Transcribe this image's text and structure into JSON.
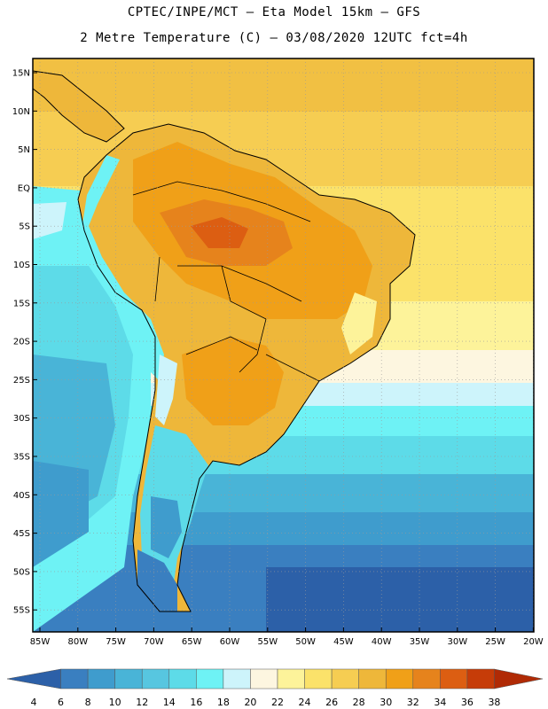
{
  "title_line1": "CPTEC/INPE/MCT –  Eta Model 15km – GFS",
  "title_line2": "2 Metre Temperature (C) – 03/08/2020 12UTC fct=4h",
  "chart_data": {
    "type": "heatmap",
    "variable": "2 Metre Temperature (C)",
    "lat_ticks": [
      "15N",
      "10N",
      "5N",
      "EQ",
      "5S",
      "10S",
      "15S",
      "20S",
      "25S",
      "30S",
      "35S",
      "40S",
      "45S",
      "50S",
      "55S"
    ],
    "lon_ticks": [
      "85W",
      "80W",
      "75W",
      "70W",
      "65W",
      "60W",
      "55W",
      "50W",
      "45W",
      "40W",
      "35W",
      "30W",
      "25W",
      "20W"
    ],
    "colorbar": {
      "levels": [
        4,
        6,
        8,
        10,
        12,
        14,
        16,
        18,
        20,
        22,
        24,
        26,
        28,
        30,
        32,
        34,
        36,
        38
      ],
      "colors": [
        "#2c60a8",
        "#3a7fc0",
        "#3f9ccd",
        "#49b4d7",
        "#57c6e0",
        "#5ddbe8",
        "#6ef2f5",
        "#cdf4fb",
        "#fdf6e0",
        "#fdf39a",
        "#fbe26a",
        "#f6cd52",
        "#eeb73a",
        "#f0a018",
        "#e6831c",
        "#dc5e12",
        "#c63c08",
        "#b02a05"
      ]
    }
  }
}
